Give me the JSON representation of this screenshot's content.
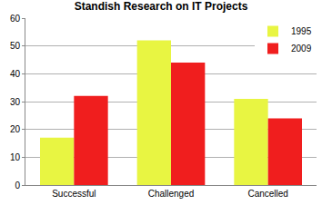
{
  "chart_data": {
    "type": "bar",
    "title": "Standish Research on IT Projects",
    "categories": [
      "Successful",
      "Challenged",
      "Cancelled"
    ],
    "series": [
      {
        "name": "1995",
        "color": "#e8f542",
        "values": [
          17,
          52,
          31
        ]
      },
      {
        "name": "2009",
        "color": "#f01e1e",
        "values": [
          32,
          44,
          24
        ]
      }
    ],
    "ylim": [
      0,
      60
    ],
    "yticks": [
      0,
      10,
      20,
      30,
      40,
      50,
      60
    ],
    "grid": true,
    "legend": "top-right"
  }
}
